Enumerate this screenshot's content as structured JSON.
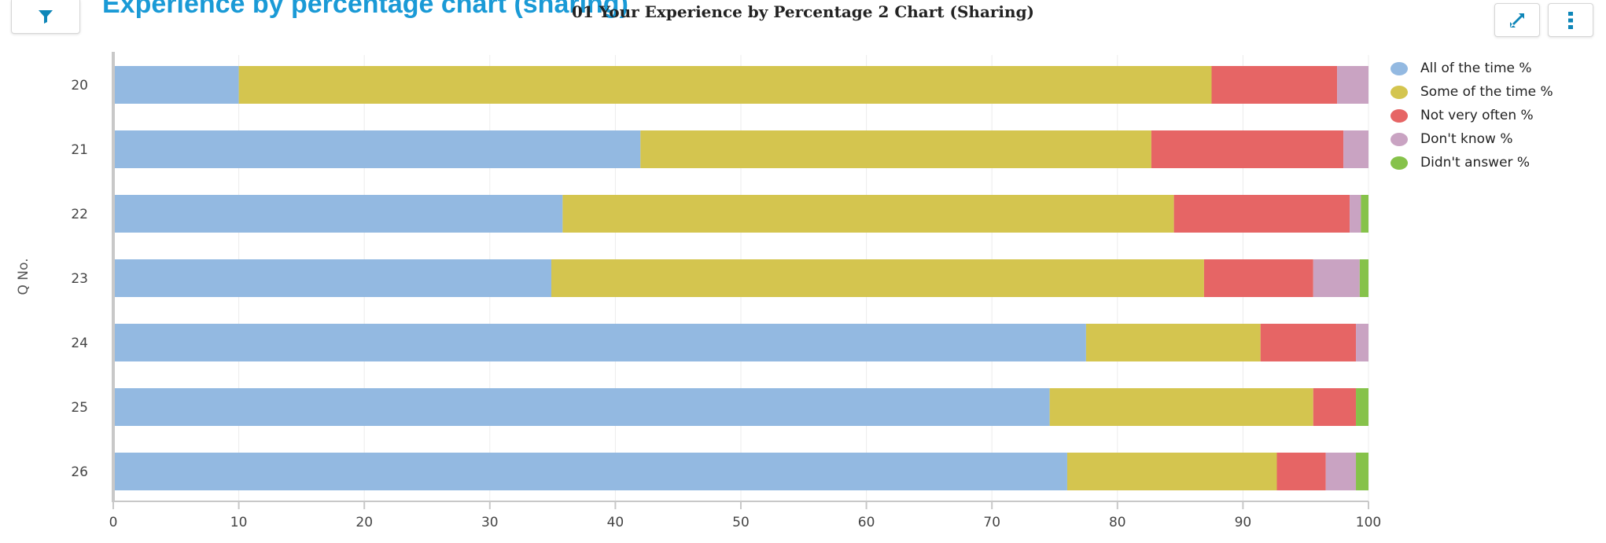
{
  "page_title": "Experience by percentage chart (sharing)",
  "toolbar": {
    "filter_icon": "filter-icon",
    "expand_icon": "expand-icon",
    "menu_icon": "more-vertical-icon",
    "accent": "#0e86b8"
  },
  "chart_data": {
    "type": "bar",
    "orientation": "horizontal",
    "stacked": true,
    "title": "01 Your Experience by Percentage 2 Chart (Sharing)",
    "xlabel": "",
    "ylabel": "Q No.",
    "xlim": [
      0,
      100
    ],
    "xticks": [
      "0",
      "10",
      "20",
      "30",
      "40",
      "50",
      "60",
      "70",
      "80",
      "90",
      "100"
    ],
    "categories": [
      "20",
      "21",
      "22",
      "23",
      "24",
      "25",
      "26"
    ],
    "series": [
      {
        "name": "All of the time %",
        "color": "#93b9e1",
        "values": [
          10.0,
          42.0,
          35.8,
          34.9,
          77.5,
          74.6,
          76.0
        ]
      },
      {
        "name": "Some of the time %",
        "color": "#d4c54f",
        "values": [
          77.5,
          40.7,
          48.7,
          52.0,
          13.9,
          21.0,
          16.7
        ]
      },
      {
        "name": "Not very often %",
        "color": "#e66565",
        "values": [
          10.0,
          15.3,
          14.0,
          8.7,
          7.6,
          3.4,
          3.9
        ]
      },
      {
        "name": "Don't know %",
        "color": "#c9a3c2",
        "values": [
          2.5,
          2.0,
          0.9,
          3.7,
          1.0,
          0.0,
          2.4
        ]
      },
      {
        "name": "Didn't answer %",
        "color": "#86c24a",
        "values": [
          0.0,
          0.0,
          0.6,
          0.7,
          0.0,
          1.0,
          1.0
        ]
      }
    ],
    "grid": true,
    "legend_position": "right"
  }
}
